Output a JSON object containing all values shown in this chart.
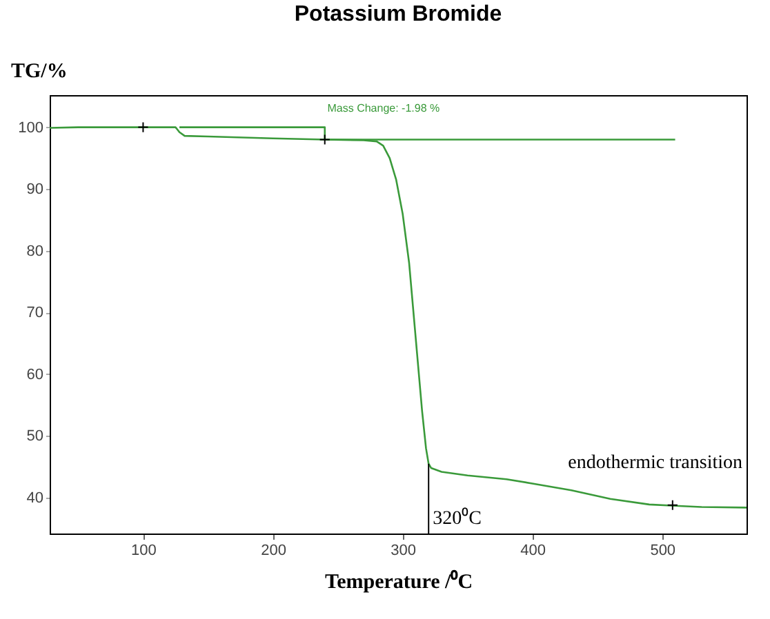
{
  "chart_data": {
    "type": "line",
    "title": "Potassium Bromide",
    "xlabel": "Temperature /⁰C",
    "ylabel": "TG/%",
    "xlim": [
      28,
      565
    ],
    "ylim": [
      34.2,
      105.2
    ],
    "xticks": [
      100,
      200,
      300,
      400,
      500
    ],
    "yticks": [
      40,
      50,
      60,
      70,
      80,
      90,
      100
    ],
    "grid": false,
    "line_style": "solid",
    "series": [
      {
        "type": "line",
        "color": "#3a9a3a",
        "marker": "none",
        "x": [
          28,
          50,
          100,
          125,
          128,
          132,
          150,
          200,
          240,
          270,
          280,
          285,
          290,
          295,
          300,
          305,
          310,
          315,
          318,
          320,
          322,
          330,
          350,
          380,
          400,
          430,
          460,
          490,
          510,
          530,
          565
        ],
        "values": [
          99.9,
          100.0,
          100.0,
          100.0,
          99.2,
          98.6,
          98.5,
          98.2,
          98.0,
          97.9,
          97.7,
          97.0,
          95.0,
          91.5,
          86.0,
          78.0,
          66.0,
          54.0,
          48.0,
          45.5,
          44.8,
          44.2,
          43.6,
          43.0,
          42.3,
          41.2,
          39.8,
          38.9,
          38.7,
          38.5,
          38.4
        ]
      },
      {
        "type": "line",
        "color": "#3a9a3a",
        "marker": "none",
        "x": [
          128,
          240,
          240,
          510
        ],
        "values": [
          100.0,
          100.0,
          98.0,
          98.0
        ]
      },
      {
        "type": "scatter",
        "color": "#000000",
        "marker": "cross",
        "x": [
          100,
          240,
          508
        ],
        "values": [
          100.0,
          98.0,
          38.8
        ]
      }
    ],
    "ref_lines": [
      {
        "axis": "x",
        "value": 320,
        "label": "320⁰C",
        "color": "#000000"
      }
    ],
    "annotations": [
      {
        "text": "Mass Change: -1.98 %",
        "x": 242,
        "y": 99.0
      },
      "endothermic transition"
    ]
  }
}
